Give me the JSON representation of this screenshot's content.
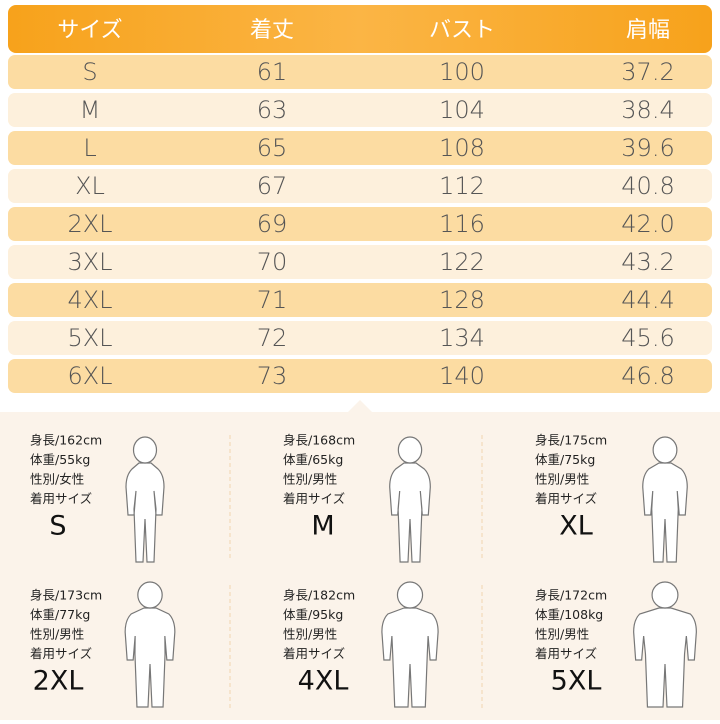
{
  "table": {
    "header": [
      "サイズ",
      "着丈",
      "バスト",
      "肩幅"
    ],
    "rows": [
      [
        "S",
        "61",
        "100",
        "37.2"
      ],
      [
        "M",
        "63",
        "104",
        "38.4"
      ],
      [
        "L",
        "65",
        "108",
        "39.6"
      ],
      [
        "XL",
        "67",
        "112",
        "40.8"
      ],
      [
        "2XL",
        "69",
        "116",
        "42.0"
      ],
      [
        "3XL",
        "70",
        "122",
        "43.2"
      ],
      [
        "4XL",
        "71",
        "128",
        "44.4"
      ],
      [
        "5XL",
        "72",
        "134",
        "45.6"
      ],
      [
        "6XL",
        "73",
        "140",
        "46.8"
      ]
    ]
  },
  "models": [
    {
      "height": "身長/162cm",
      "weight": "体重/55kg",
      "gender": "性別/女性",
      "size_label": "着用サイズ",
      "size": "S"
    },
    {
      "height": "身長/168cm",
      "weight": "体重/65kg",
      "gender": "性別/男性",
      "size_label": "着用サイズ",
      "size": "M"
    },
    {
      "height": "身長/175cm",
      "weight": "体重/75kg",
      "gender": "性別/男性",
      "size_label": "着用サイズ",
      "size": "XL"
    },
    {
      "height": "身長/173cm",
      "weight": "体重/77kg",
      "gender": "性別/男性",
      "size_label": "着用サイズ",
      "size": "2XL"
    },
    {
      "height": "身長/182cm",
      "weight": "体重/95kg",
      "gender": "性別/男性",
      "size_label": "着用サイズ",
      "size": "4XL"
    },
    {
      "height": "身長/172cm",
      "weight": "体重/108kg",
      "gender": "性別/男性",
      "size_label": "着用サイズ",
      "size": "5XL"
    }
  ]
}
